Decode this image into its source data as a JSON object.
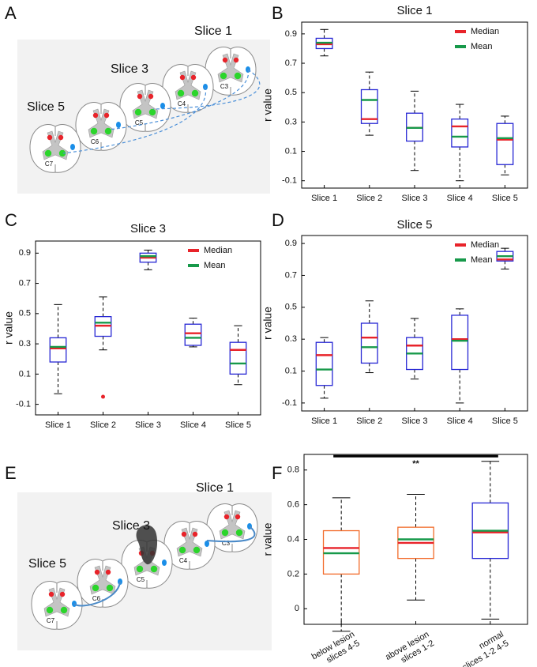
{
  "panels": [
    "A",
    "B",
    "C",
    "D",
    "E",
    "F"
  ],
  "diagrams": [
    {
      "slice_labels": [
        "Slice 1",
        "Slice 3",
        "Slice 5"
      ],
      "segments": [
        "C3",
        "C4",
        "C5",
        "C6",
        "C7"
      ]
    },
    {
      "slice_labels": [
        "Slice 1",
        "Slice 3",
        "Slice 5"
      ],
      "segments": [
        "C3",
        "C4",
        "C5",
        "C6",
        "C7"
      ]
    }
  ],
  "chart_data": [
    {
      "type": "box",
      "title": "Slice 1",
      "ylabel": "r value",
      "categories": [
        "Slice 1",
        "Slice 2",
        "Slice 3",
        "Slice 4",
        "Slice 5"
      ],
      "boxes": [
        {
          "low": 0.75,
          "q1": 0.8,
          "median": 0.83,
          "mean": 0.84,
          "q3": 0.87,
          "high": 0.93
        },
        {
          "low": 0.21,
          "q1": 0.29,
          "median": 0.32,
          "mean": 0.45,
          "q3": 0.52,
          "high": 0.64
        },
        {
          "low": -0.03,
          "q1": 0.17,
          "median": 0.26,
          "mean": 0.26,
          "q3": 0.36,
          "high": 0.51
        },
        {
          "low": -0.1,
          "q1": 0.13,
          "median": 0.27,
          "mean": 0.2,
          "q3": 0.32,
          "high": 0.42
        },
        {
          "low": -0.06,
          "q1": 0.01,
          "median": 0.18,
          "mean": 0.19,
          "q3": 0.29,
          "high": 0.34
        }
      ],
      "box_colors": [
        "#2626d4",
        "#2626d4",
        "#2626d4",
        "#2626d4",
        "#2626d4"
      ],
      "median_color": "#e8232a",
      "mean_color": "#17994a",
      "legend": [
        {
          "name": "Median",
          "color": "#e8232a"
        },
        {
          "name": "Mean",
          "color": "#17994a"
        }
      ],
      "legend_loc": "upper right",
      "ylim": [
        -0.15,
        0.98
      ],
      "yticks": [
        -0.1,
        0.1,
        0.3,
        0.5,
        0.7,
        0.9
      ]
    },
    {
      "type": "box",
      "title": "Slice 3",
      "ylabel": "r value",
      "categories": [
        "Slice 1",
        "Slice 2",
        "Slice 3",
        "Slice 4",
        "Slice 5"
      ],
      "boxes": [
        {
          "low": -0.03,
          "q1": 0.18,
          "median": 0.27,
          "mean": 0.28,
          "q3": 0.34,
          "high": 0.56
        },
        {
          "low": 0.26,
          "q1": 0.35,
          "median": 0.42,
          "mean": 0.44,
          "q3": 0.48,
          "high": 0.61,
          "outliers": [
            -0.05
          ]
        },
        {
          "low": 0.79,
          "q1": 0.84,
          "median": 0.87,
          "mean": 0.88,
          "q3": 0.9,
          "high": 0.92
        },
        {
          "low": 0.28,
          "q1": 0.29,
          "median": 0.37,
          "mean": 0.34,
          "q3": 0.43,
          "high": 0.47
        },
        {
          "low": 0.03,
          "q1": 0.1,
          "median": 0.26,
          "mean": 0.17,
          "q3": 0.31,
          "high": 0.42
        }
      ],
      "box_colors": [
        "#2626d4",
        "#2626d4",
        "#2626d4",
        "#2626d4",
        "#2626d4"
      ],
      "median_color": "#e8232a",
      "mean_color": "#17994a",
      "legend": [
        {
          "name": "Median",
          "color": "#e8232a"
        },
        {
          "name": "Mean",
          "color": "#17994a"
        }
      ],
      "legend_loc": "upper right",
      "ylim": [
        -0.17,
        0.98
      ],
      "yticks": [
        -0.1,
        0.1,
        0.3,
        0.5,
        0.7,
        0.9
      ]
    },
    {
      "type": "box",
      "title": "Slice 5",
      "ylabel": "r value",
      "categories": [
        "Slice 1",
        "Slice 2",
        "Slice 3",
        "Slice 4",
        "Slice 5"
      ],
      "boxes": [
        {
          "low": -0.07,
          "q1": 0.01,
          "median": 0.2,
          "mean": 0.11,
          "q3": 0.28,
          "high": 0.31
        },
        {
          "low": 0.09,
          "q1": 0.15,
          "median": 0.31,
          "mean": 0.25,
          "q3": 0.4,
          "high": 0.54
        },
        {
          "low": 0.05,
          "q1": 0.11,
          "median": 0.26,
          "mean": 0.21,
          "q3": 0.31,
          "high": 0.43
        },
        {
          "low": -0.1,
          "q1": 0.11,
          "median": 0.3,
          "mean": 0.29,
          "q3": 0.45,
          "high": 0.49
        },
        {
          "low": 0.74,
          "q1": 0.79,
          "median": 0.8,
          "mean": 0.82,
          "q3": 0.85,
          "high": 0.87
        }
      ],
      "box_colors": [
        "#2626d4",
        "#2626d4",
        "#2626d4",
        "#2626d4",
        "#2626d4"
      ],
      "median_color": "#e8232a",
      "mean_color": "#17994a",
      "legend": [
        {
          "name": "Median",
          "color": "#e8232a"
        },
        {
          "name": "Mean",
          "color": "#17994a"
        }
      ],
      "legend_loc": "upper right",
      "ylim": [
        -0.15,
        0.95
      ],
      "yticks": [
        -0.1,
        0.1,
        0.3,
        0.5,
        0.7,
        0.9
      ]
    },
    {
      "type": "box",
      "ylabel": "r value",
      "categories": [
        [
          "below lesion",
          "slices 4-5"
        ],
        [
          "above lesion",
          "slices 1-2"
        ],
        [
          "normal",
          "slices 1-2 4-5"
        ]
      ],
      "boxes": [
        {
          "low": -0.13,
          "q1": 0.2,
          "median": 0.35,
          "mean": 0.32,
          "q3": 0.45,
          "high": 0.64
        },
        {
          "low": 0.05,
          "q1": 0.29,
          "median": 0.38,
          "mean": 0.4,
          "q3": 0.47,
          "high": 0.66
        },
        {
          "low": -0.06,
          "q1": 0.29,
          "median": 0.44,
          "mean": 0.45,
          "q3": 0.61,
          "high": 0.85
        }
      ],
      "box_colors": [
        "#f26b2a",
        "#f26b2a",
        "#2626d4"
      ],
      "median_color": "#e8232a",
      "mean_color": "#17994a",
      "significance": {
        "label": "**",
        "y": 0.88
      },
      "ylim": [
        -0.09,
        0.89
      ],
      "yticks": [
        0,
        0.2,
        0.4,
        0.6,
        0.8
      ]
    }
  ]
}
